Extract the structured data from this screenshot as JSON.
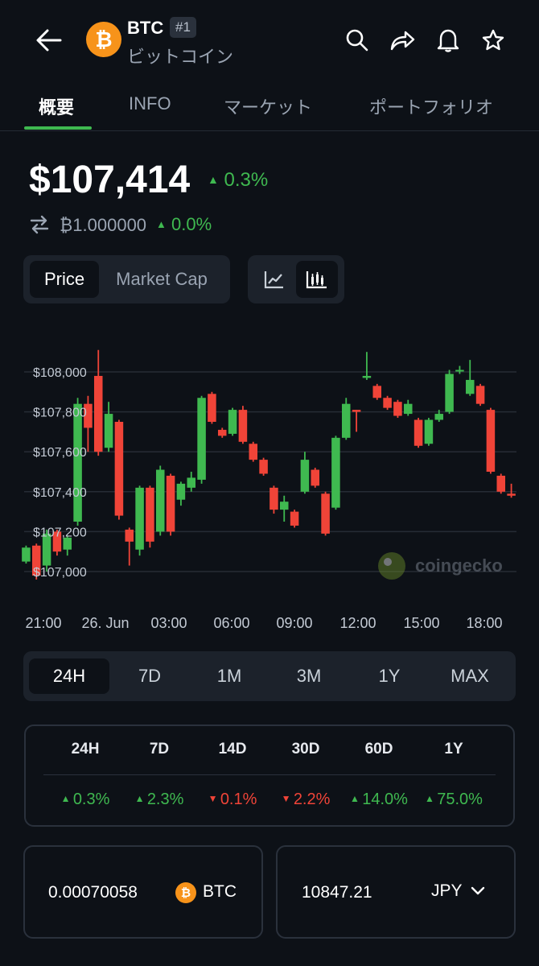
{
  "header": {
    "symbol": "BTC",
    "rank": "#1",
    "name": "ビットコイン",
    "logo_glyph": "₿",
    "icons": [
      "back-arrow-icon",
      "search-icon",
      "share-icon",
      "bell-icon",
      "star-icon"
    ]
  },
  "tabs": [
    {
      "label": "概要",
      "active": true
    },
    {
      "label": "INFO",
      "active": false
    },
    {
      "label": "マーケット",
      "active": false
    },
    {
      "label": "ポートフォリオ",
      "active": false
    }
  ],
  "price": {
    "value": "$107,414",
    "change": "0.3%",
    "change_dir": "up",
    "btc_value": "₿1.000000",
    "btc_change": "0.0%"
  },
  "chart_toggle": {
    "price_label": "Price",
    "market_cap_label": "Market Cap",
    "active": "Price",
    "view_modes": [
      "line-chart-icon",
      "candlestick-icon"
    ],
    "active_view": "candlestick-icon"
  },
  "chart_data": {
    "type": "candlestick",
    "ylabels": [
      "$108,000",
      "$107,800",
      "$107,600",
      "$107,400",
      "$107,200",
      "$107,000"
    ],
    "ylim": [
      106950,
      108150
    ],
    "xlabels": [
      "21:00",
      "26. Jun",
      "03:00",
      "06:00",
      "09:00",
      "12:00",
      "15:00",
      "18:00"
    ],
    "watermark": "coingecko",
    "colors": {
      "up": "#3fb950",
      "down": "#f04438",
      "grid": "#262c35"
    },
    "candles": [
      {
        "o": 107050,
        "c": 107120,
        "h": 107130,
        "l": 107040
      },
      {
        "o": 107130,
        "c": 106980,
        "h": 107140,
        "l": 106960
      },
      {
        "o": 107030,
        "c": 107190,
        "h": 107210,
        "l": 107000
      },
      {
        "o": 107200,
        "c": 107100,
        "h": 107210,
        "l": 107080
      },
      {
        "o": 107110,
        "c": 107170,
        "h": 107180,
        "l": 107080
      },
      {
        "o": 107250,
        "c": 107840,
        "h": 107870,
        "l": 107230
      },
      {
        "o": 107840,
        "c": 107720,
        "h": 107880,
        "l": 107600
      },
      {
        "o": 107980,
        "c": 107600,
        "h": 108110,
        "l": 107580
      },
      {
        "o": 107620,
        "c": 107790,
        "h": 107850,
        "l": 107600
      },
      {
        "o": 107750,
        "c": 107280,
        "h": 107760,
        "l": 107260
      },
      {
        "o": 107210,
        "c": 107150,
        "h": 107220,
        "l": 107030
      },
      {
        "o": 107110,
        "c": 107420,
        "h": 107430,
        "l": 107080
      },
      {
        "o": 107420,
        "c": 107150,
        "h": 107430,
        "l": 107120
      },
      {
        "o": 107200,
        "c": 107510,
        "h": 107530,
        "l": 107180
      },
      {
        "o": 107480,
        "c": 107200,
        "h": 107490,
        "l": 107180
      },
      {
        "o": 107360,
        "c": 107440,
        "h": 107450,
        "l": 107330
      },
      {
        "o": 107420,
        "c": 107470,
        "h": 107500,
        "l": 107400
      },
      {
        "o": 107460,
        "c": 107870,
        "h": 107880,
        "l": 107440
      },
      {
        "o": 107890,
        "c": 107750,
        "h": 107900,
        "l": 107740
      },
      {
        "o": 107710,
        "c": 107680,
        "h": 107720,
        "l": 107670
      },
      {
        "o": 107690,
        "c": 107810,
        "h": 107820,
        "l": 107680
      },
      {
        "o": 107810,
        "c": 107650,
        "h": 107830,
        "l": 107640
      },
      {
        "o": 107640,
        "c": 107560,
        "h": 107650,
        "l": 107550
      },
      {
        "o": 107560,
        "c": 107490,
        "h": 107570,
        "l": 107480
      },
      {
        "o": 107420,
        "c": 107310,
        "h": 107430,
        "l": 107290
      },
      {
        "o": 107310,
        "c": 107350,
        "h": 107380,
        "l": 107250
      },
      {
        "o": 107300,
        "c": 107230,
        "h": 107310,
        "l": 107220
      },
      {
        "o": 107400,
        "c": 107560,
        "h": 107600,
        "l": 107390
      },
      {
        "o": 107510,
        "c": 107430,
        "h": 107520,
        "l": 107420
      },
      {
        "o": 107390,
        "c": 107190,
        "h": 107400,
        "l": 107180
      },
      {
        "o": 107320,
        "c": 107670,
        "h": 107680,
        "l": 107310
      },
      {
        "o": 107670,
        "c": 107840,
        "h": 107870,
        "l": 107660
      },
      {
        "o": 107810,
        "c": 107800,
        "h": 107810,
        "l": 107700
      },
      {
        "o": 107970,
        "c": 107980,
        "h": 108100,
        "l": 107960
      },
      {
        "o": 107930,
        "c": 107870,
        "h": 107940,
        "l": 107860
      },
      {
        "o": 107870,
        "c": 107820,
        "h": 107880,
        "l": 107810
      },
      {
        "o": 107850,
        "c": 107780,
        "h": 107860,
        "l": 107770
      },
      {
        "o": 107790,
        "c": 107840,
        "h": 107860,
        "l": 107780
      },
      {
        "o": 107760,
        "c": 107630,
        "h": 107770,
        "l": 107620
      },
      {
        "o": 107640,
        "c": 107760,
        "h": 107770,
        "l": 107630
      },
      {
        "o": 107760,
        "c": 107790,
        "h": 107810,
        "l": 107750
      },
      {
        "o": 107800,
        "c": 107990,
        "h": 108010,
        "l": 107790
      },
      {
        "o": 108010,
        "c": 108010,
        "h": 108030,
        "l": 107990
      },
      {
        "o": 107890,
        "c": 107960,
        "h": 108060,
        "l": 107880
      },
      {
        "o": 107930,
        "c": 107840,
        "h": 107940,
        "l": 107830
      },
      {
        "o": 107810,
        "c": 107500,
        "h": 107820,
        "l": 107490
      },
      {
        "o": 107480,
        "c": 107400,
        "h": 107490,
        "l": 107390
      },
      {
        "o": 107390,
        "c": 107380,
        "h": 107440,
        "l": 107370
      }
    ]
  },
  "ranges": {
    "items": [
      "24H",
      "7D",
      "1M",
      "3M",
      "1Y",
      "MAX"
    ],
    "active": "24H"
  },
  "performance": [
    {
      "period": "24H",
      "value": "0.3%",
      "dir": "up"
    },
    {
      "period": "7D",
      "value": "2.3%",
      "dir": "up"
    },
    {
      "period": "14D",
      "value": "0.1%",
      "dir": "down"
    },
    {
      "period": "30D",
      "value": "2.2%",
      "dir": "down"
    },
    {
      "period": "60D",
      "value": "14.0%",
      "dir": "up"
    },
    {
      "period": "1Y",
      "value": "75.0%",
      "dir": "up"
    }
  ],
  "converter": {
    "amount": "0.00070058",
    "coin": "BTC",
    "fiat_amount": "10847.21",
    "fiat": "JPY"
  }
}
